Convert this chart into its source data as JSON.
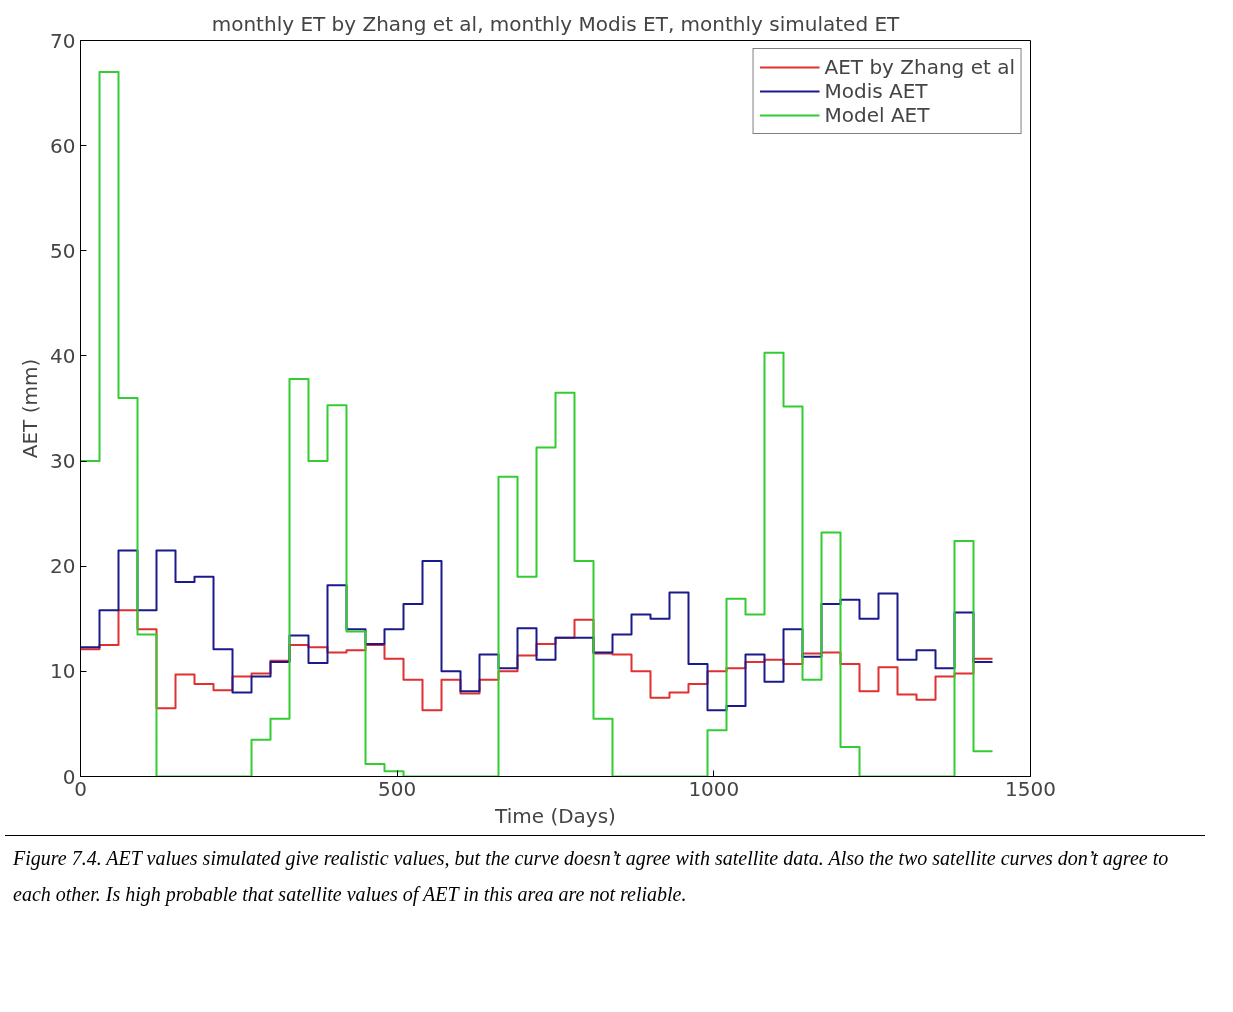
{
  "chart_data": {
    "type": "step",
    "title": "monthly ET by Zhang et al, monthly Modis ET, monthly simulated ET",
    "xlabel": "Time (Days)",
    "ylabel": "AET (mm)",
    "x": [
      0,
      30,
      60,
      90,
      120,
      150,
      180,
      210,
      240,
      270,
      300,
      330,
      360,
      390,
      420,
      450,
      480,
      510,
      540,
      570,
      600,
      630,
      660,
      690,
      720,
      750,
      780,
      810,
      840,
      870,
      900,
      930,
      960,
      990,
      1020,
      1050,
      1080,
      1110,
      1140,
      1170,
      1200,
      1230,
      1260,
      1290,
      1320,
      1350,
      1380,
      1410,
      1440
    ],
    "series": [
      {
        "name": "AET by Zhang et al",
        "color": "#e03030",
        "values": [
          12.1,
          12.5,
          15.8,
          14,
          6.5,
          9.7,
          8.8,
          8.2,
          9.5,
          9.8,
          11,
          12.5,
          12.3,
          11.8,
          12,
          12.5,
          11.2,
          9.2,
          6.3,
          9.2,
          7.9,
          9.2,
          10.0,
          11.5,
          12.6,
          13.2,
          14.9,
          11.7,
          11.6,
          10,
          7.5,
          8,
          8.8,
          10,
          10.3,
          10.9,
          11.1,
          10.7,
          11.7,
          11.8,
          10.7,
          8.1,
          10.4,
          7.8,
          7.3,
          9.5,
          9.8,
          11.2,
          11.2
        ]
      },
      {
        "name": "Modis AET",
        "color": "#1a1a8c",
        "values": [
          12.3,
          15.8,
          21.5,
          15.8,
          21.5,
          18.5,
          19,
          12.1,
          8,
          9.5,
          10.9,
          13.4,
          10.8,
          18.2,
          14,
          12.6,
          14,
          16.4,
          20.5,
          10,
          8.1,
          11.6,
          10.3,
          14.1,
          11.1,
          13.2,
          13.2,
          11.8,
          13.5,
          15.4,
          15,
          17.5,
          10.7,
          6.3,
          6.7,
          11.6,
          9,
          14,
          11.4,
          16.4,
          16.8,
          15,
          17.4,
          11.1,
          12,
          10.3,
          15.6,
          10.9,
          10.9
        ]
      },
      {
        "name": "Model AET",
        "color": "#33cc33",
        "values": [
          30,
          67,
          36,
          13.5,
          0,
          0,
          0,
          0,
          0,
          3.5,
          5.5,
          37.8,
          30,
          35.3,
          13.8,
          1.2,
          0.5,
          0,
          0,
          0,
          0,
          0,
          28.5,
          19,
          31.3,
          36.5,
          20.5,
          5.5,
          0,
          0,
          0,
          0,
          0,
          4.4,
          16.9,
          15.4,
          40.3,
          35.2,
          9.2,
          23.2,
          2.8,
          0,
          0,
          0,
          0,
          0,
          22.4,
          2.4,
          2.4
        ]
      }
    ],
    "xlim": [
      0,
      1500
    ],
    "xticks": [
      0,
      500,
      1000,
      1500
    ],
    "ylim": [
      0,
      70
    ],
    "yticks": [
      0,
      10,
      20,
      30,
      40,
      50,
      60,
      70
    ],
    "grid": false,
    "legend": "top right",
    "line_style": "solid",
    "marker": "none",
    "annotations": [
      "Figure 7.4. AET values simulated give realistic values, but the curve doesn’t agree with satellite data. Also the two satellite curves don’t agree to each other. Is high probable that satellite values of AET in this area are not reliable."
    ]
  }
}
